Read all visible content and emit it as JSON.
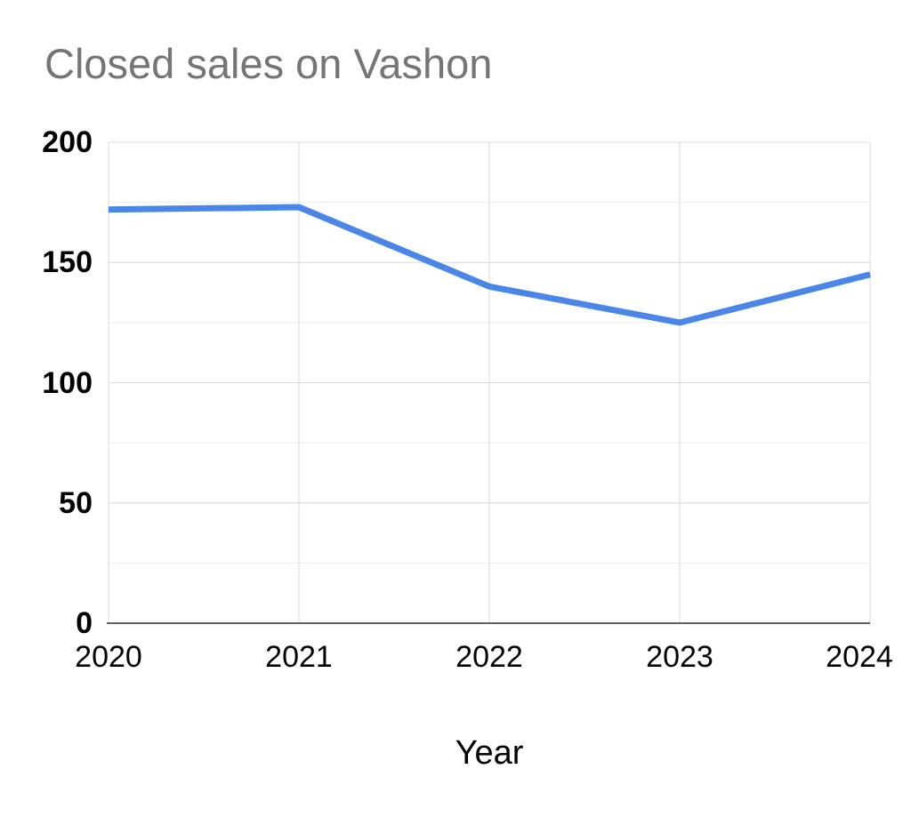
{
  "title": "Closed sales on Vashon",
  "chart_data": {
    "type": "line",
    "title": "Closed sales on Vashon",
    "xlabel": "Year",
    "ylabel": "",
    "categories": [
      "2020",
      "2021",
      "2022",
      "2023",
      "2024"
    ],
    "series": [
      {
        "name": "Closed sales",
        "values": [
          172,
          173,
          140,
          125,
          145
        ]
      }
    ],
    "ylim": [
      0,
      200
    ],
    "yticks": [
      0,
      50,
      100,
      150,
      200
    ],
    "minor_ytick_step": 25,
    "grid": "on",
    "legend_position": "none",
    "colors": {
      "line": "#4a86e8",
      "title_text": "#757575",
      "tick_text": "#000000",
      "grid_major": "#d9d9d9",
      "grid_minor": "#ededed",
      "axis_line": "#5f5f5f",
      "background": "#ffffff"
    }
  }
}
